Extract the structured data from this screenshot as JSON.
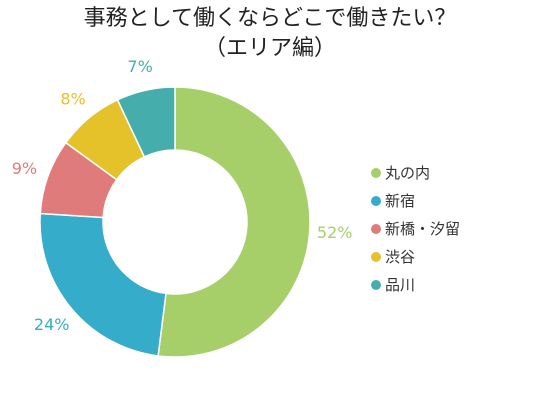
{
  "chart_data": {
    "type": "pie",
    "title": "事務として働くならどこで働きたい？",
    "subtitle": "（エリア編）",
    "donut": true,
    "legend_position": "right",
    "labels": [
      "丸の内",
      "新宿",
      "新橋・汐留",
      "渋谷",
      "品川"
    ],
    "values": [
      52,
      24,
      9,
      8,
      7
    ],
    "value_labels": [
      "52%",
      "24%",
      "9%",
      "8%",
      "7%"
    ],
    "colors": [
      "#a6cf6a",
      "#35acca",
      "#e07b7b",
      "#e5c12a",
      "#45aeac"
    ]
  }
}
